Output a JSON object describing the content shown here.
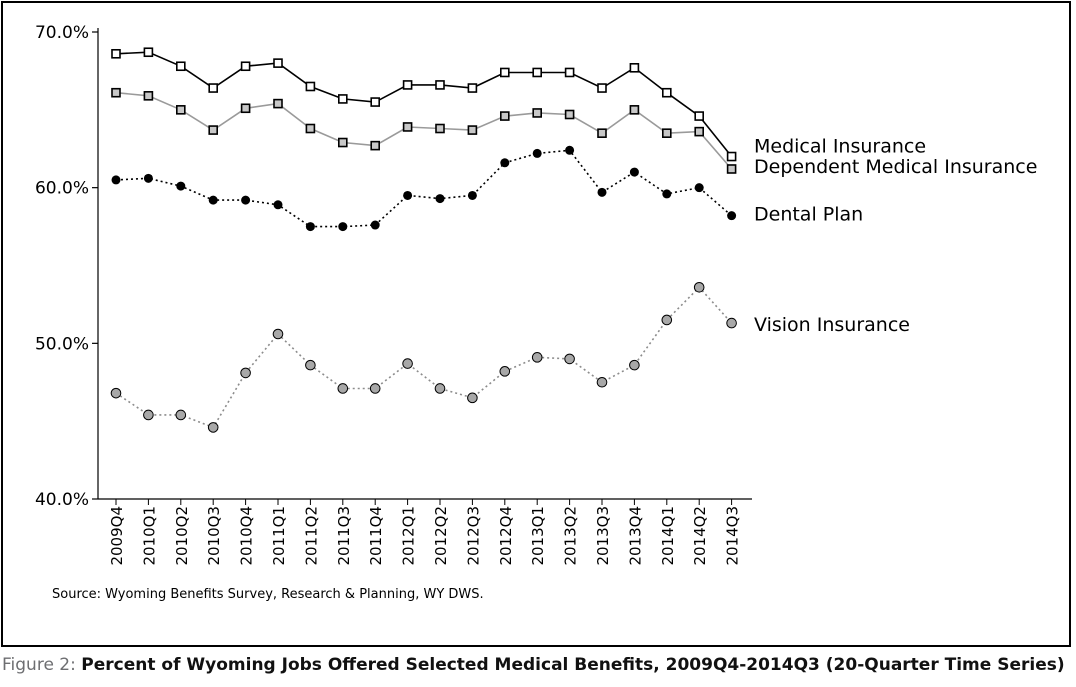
{
  "chart_data": {
    "type": "line",
    "categories": [
      "2009Q4",
      "2010Q1",
      "2010Q2",
      "2010Q3",
      "2010Q4",
      "2011Q1",
      "2011Q2",
      "2011Q3",
      "2011Q4",
      "2012Q1",
      "2012Q2",
      "2012Q3",
      "2012Q4",
      "2013Q1",
      "2013Q2",
      "2013Q3",
      "2013Q4",
      "2014Q1",
      "2014Q2",
      "2014Q3"
    ],
    "ylim": [
      40,
      70
    ],
    "yticks": [
      40,
      50,
      60,
      70
    ],
    "ytick_labels": [
      "40.0%",
      "50.0%",
      "60.0%",
      "70.0%"
    ],
    "grid": false,
    "legend": "direct labels at right end of lines",
    "series": [
      {
        "name": "Medical Insurance",
        "color": "#000000",
        "line": "solid",
        "marker": "square-open",
        "values": [
          68.6,
          68.7,
          67.8,
          66.4,
          67.8,
          68.0,
          66.5,
          65.7,
          65.5,
          66.6,
          66.6,
          66.4,
          67.4,
          67.4,
          67.4,
          66.4,
          67.7,
          66.1,
          64.6,
          62.0
        ]
      },
      {
        "name": "Dependent Medical Insurance",
        "color": "#9a9a9a",
        "line": "solid",
        "marker": "square-grey",
        "values": [
          66.1,
          65.9,
          65.0,
          63.7,
          65.1,
          65.4,
          63.8,
          62.9,
          62.7,
          63.9,
          63.8,
          63.7,
          64.6,
          64.8,
          64.7,
          63.5,
          65.0,
          63.5,
          63.6,
          61.2
        ]
      },
      {
        "name": "Dental Plan",
        "color": "#000000",
        "line": "dotted",
        "marker": "circle-black",
        "values": [
          60.5,
          60.6,
          60.1,
          59.2,
          59.2,
          58.9,
          57.5,
          57.5,
          57.6,
          59.5,
          59.3,
          59.5,
          61.6,
          62.2,
          62.4,
          59.7,
          61.0,
          59.6,
          60.0,
          58.2
        ]
      },
      {
        "name": "Vision Insurance",
        "color": "#8c8c8c",
        "line": "dotted",
        "marker": "circle-grey",
        "values": [
          46.8,
          45.4,
          45.4,
          44.6,
          48.1,
          50.6,
          48.6,
          47.1,
          47.1,
          48.7,
          47.1,
          46.5,
          48.2,
          49.1,
          49.0,
          47.5,
          48.6,
          51.5,
          53.6,
          51.3
        ]
      }
    ]
  },
  "source_note": "Source: Wyoming Benefits Survey, Research & Planning, WY DWS.",
  "caption": {
    "label": "Figure 2:",
    "title": "Percent of Wyoming Jobs Offered Selected Medical Benefits, 2009Q4-2014Q3 (20-Quarter Time Series)"
  }
}
